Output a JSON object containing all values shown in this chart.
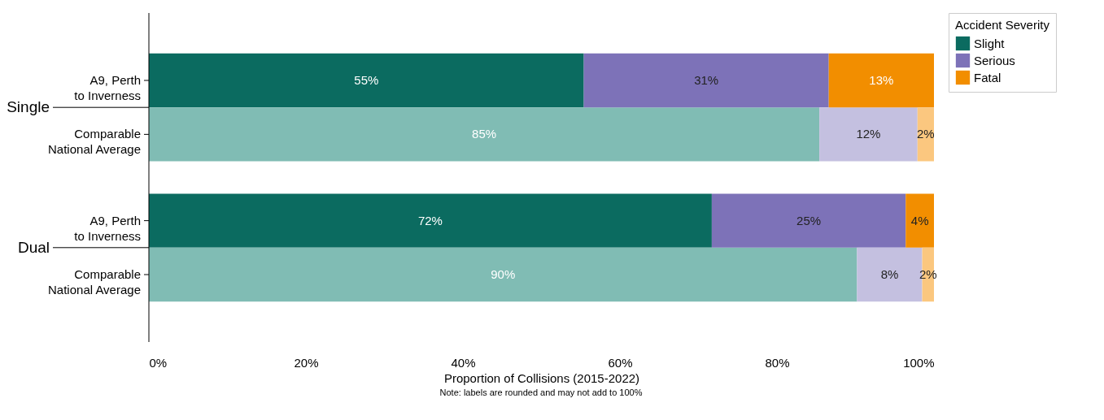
{
  "chart_data": {
    "type": "bar",
    "orientation": "horizontal",
    "stacked": true,
    "categories": [
      "A9, Perth\nto Inverness",
      "Comparable\nNational Average",
      "A9, Perth\nto Inverness",
      "Comparable\nNational Average"
    ],
    "series": [
      {
        "name": "Slight",
        "color": "#0b6b60",
        "colors": [
          "#0b6b60",
          "#80bcb4",
          "#0b6b60",
          "#80bcb4"
        ],
        "values": [
          55.4,
          85.4,
          71.7,
          90.2
        ],
        "value_labels": [
          "55%",
          "85%",
          "72%",
          "90%"
        ]
      },
      {
        "name": "Serious",
        "color": "#7d72b8",
        "colors": [
          "#7d72b8",
          "#c4c0e0",
          "#7d72b8",
          "#c4c0e0"
        ],
        "values": [
          31.2,
          12.5,
          24.7,
          8.3
        ],
        "value_labels": [
          "31%",
          "12%",
          "25%",
          "8%"
        ]
      },
      {
        "name": "Fatal",
        "color": "#f28e00",
        "colors": [
          "#f28e00",
          "#fbc77f",
          "#f28e00",
          "#fbc77f"
        ],
        "values": [
          13.4,
          2.1,
          3.6,
          1.5
        ],
        "value_labels": [
          "13%",
          "2%",
          "4%",
          "2%"
        ]
      }
    ],
    "xlim": [
      0,
      100
    ],
    "xticks": [
      {
        "value": 0,
        "label": "0%"
      },
      {
        "value": 20,
        "label": "20%"
      },
      {
        "value": 40,
        "label": "40%"
      },
      {
        "value": 60,
        "label": "60%"
      },
      {
        "value": 80,
        "label": "80%"
      },
      {
        "value": 100,
        "label": "100%"
      }
    ],
    "xlabel": "Proportion of Collisions (2015-2022)",
    "legend_title": "Accident Severity",
    "legend": "right",
    "grid": false,
    "annotations": [
      "Single",
      "Dual",
      "Note: labels are rounded and may not add to 100%"
    ]
  }
}
